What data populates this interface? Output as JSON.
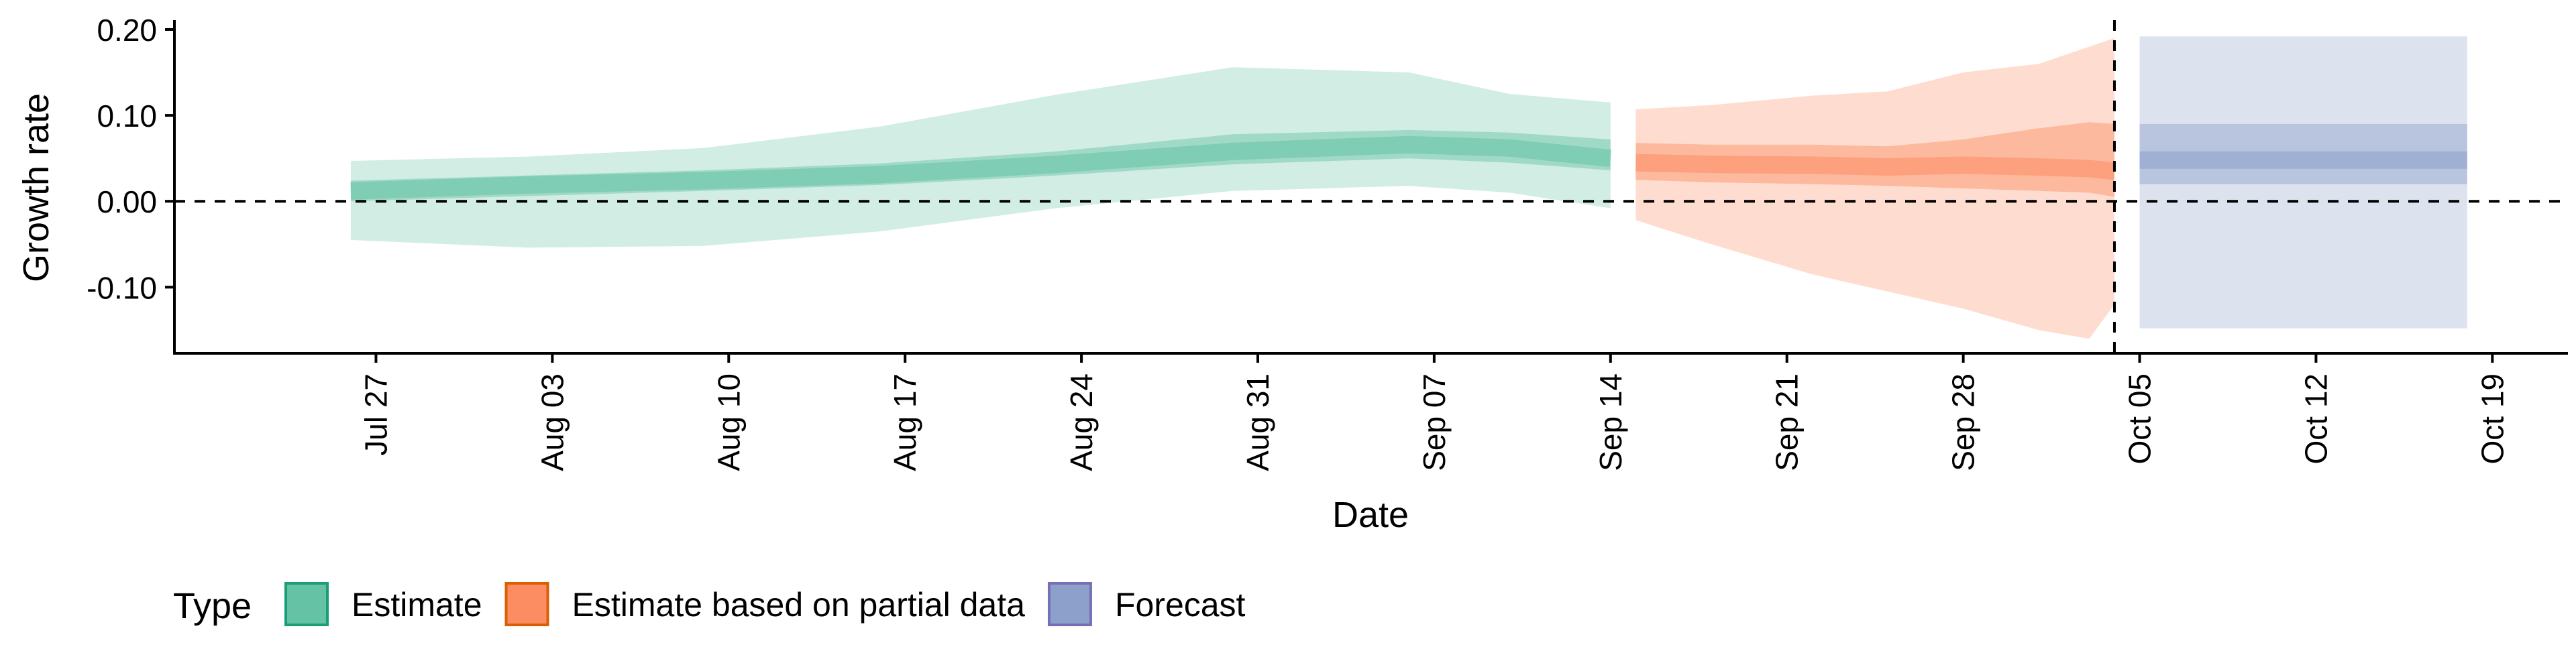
{
  "chart_data": {
    "type": "area",
    "xlabel": "Date",
    "ylabel": "Growth rate",
    "x_axis": {
      "ticks": [
        "2020-07-27",
        "2020-08-03",
        "2020-08-10",
        "2020-08-17",
        "2020-08-24",
        "2020-08-31",
        "2020-09-07",
        "2020-09-14",
        "2020-09-21",
        "2020-09-28",
        "2020-10-05",
        "2020-10-12",
        "2020-10-19"
      ],
      "tick_labels": [
        "Jul 27",
        "Aug 03",
        "Aug 10",
        "Aug 17",
        "Aug 24",
        "Aug 31",
        "Sep 07",
        "Sep 14",
        "Sep 21",
        "Sep 28",
        "Oct 05",
        "Oct 12",
        "Oct 19"
      ],
      "range": [
        "2020-07-19",
        "2020-10-22"
      ]
    },
    "y_axis": {
      "range": [
        -0.177,
        0.207
      ],
      "ticks": [
        -0.1,
        0.0,
        0.1,
        0.2
      ],
      "tick_labels": [
        "-0.10",
        "0.00",
        "0.10",
        "0.20"
      ]
    },
    "reference_lines": {
      "horizontal_y": 0.0,
      "vertical_x": "2020-10-04",
      "style": "dashed"
    },
    "grid": false,
    "legend": {
      "title": "Type",
      "position": "bottom-left",
      "entries": [
        "Estimate",
        "Estimate based on partial data",
        "Forecast"
      ]
    },
    "series": [
      {
        "name": "Estimate",
        "color": "#66c2a5",
        "border_color": "#1b9e77",
        "points": [
          {
            "x": "2020-07-26",
            "median": 0.012,
            "lo50": 0.0,
            "hi50": 0.024,
            "lo90": -0.045,
            "hi90": 0.047
          },
          {
            "x": "2020-08-02",
            "median": 0.019,
            "lo50": 0.006,
            "hi50": 0.03,
            "lo90": -0.054,
            "hi90": 0.052
          },
          {
            "x": "2020-08-09",
            "median": 0.024,
            "lo50": 0.012,
            "hi50": 0.036,
            "lo90": -0.052,
            "hi90": 0.062
          },
          {
            "x": "2020-08-16",
            "median": 0.031,
            "lo50": 0.019,
            "hi50": 0.044,
            "lo90": -0.035,
            "hi90": 0.087
          },
          {
            "x": "2020-08-23",
            "median": 0.043,
            "lo50": 0.03,
            "hi50": 0.058,
            "lo90": -0.008,
            "hi90": 0.124
          },
          {
            "x": "2020-08-30",
            "median": 0.058,
            "lo50": 0.043,
            "hi50": 0.078,
            "lo90": 0.012,
            "hi90": 0.156
          },
          {
            "x": "2020-09-06",
            "median": 0.066,
            "lo50": 0.05,
            "hi50": 0.083,
            "lo90": 0.018,
            "hi90": 0.15
          },
          {
            "x": "2020-09-10",
            "median": 0.062,
            "lo50": 0.045,
            "hi50": 0.08,
            "lo90": 0.01,
            "hi90": 0.125
          },
          {
            "x": "2020-09-14",
            "median": 0.05,
            "lo50": 0.036,
            "hi50": 0.072,
            "lo90": -0.008,
            "hi90": 0.115
          }
        ]
      },
      {
        "name": "Estimate based on partial data",
        "color": "#fc8d62",
        "border_color": "#d95f02",
        "points": [
          {
            "x": "2020-09-15",
            "median": 0.045,
            "lo50": 0.025,
            "hi50": 0.068,
            "lo90": -0.022,
            "hi90": 0.107
          },
          {
            "x": "2020-09-18",
            "median": 0.043,
            "lo50": 0.022,
            "hi50": 0.066,
            "lo90": -0.05,
            "hi90": 0.112
          },
          {
            "x": "2020-09-22",
            "median": 0.042,
            "lo50": 0.02,
            "hi50": 0.066,
            "lo90": -0.085,
            "hi90": 0.123
          },
          {
            "x": "2020-09-25",
            "median": 0.04,
            "lo50": 0.018,
            "hi50": 0.064,
            "lo90": -0.105,
            "hi90": 0.128
          },
          {
            "x": "2020-09-28",
            "median": 0.042,
            "lo50": 0.015,
            "hi50": 0.072,
            "lo90": -0.125,
            "hi90": 0.15
          },
          {
            "x": "2020-10-01",
            "median": 0.04,
            "lo50": 0.012,
            "hi50": 0.085,
            "lo90": -0.15,
            "hi90": 0.16
          },
          {
            "x": "2020-10-03",
            "median": 0.038,
            "lo50": 0.01,
            "hi50": 0.092,
            "lo90": -0.16,
            "hi90": 0.18
          },
          {
            "x": "2020-10-04",
            "median": 0.035,
            "lo50": 0.005,
            "hi50": 0.09,
            "lo90": -0.12,
            "hi90": 0.19
          }
        ]
      },
      {
        "name": "Forecast",
        "color": "#8da0cb",
        "border_color": "#7570b3",
        "points": [
          {
            "x": "2020-10-05",
            "median": 0.048,
            "lo50": 0.02,
            "hi50": 0.09,
            "lo90": -0.148,
            "hi90": 0.192
          },
          {
            "x": "2020-10-18",
            "median": 0.048,
            "lo50": 0.02,
            "hi50": 0.09,
            "lo90": -0.148,
            "hi90": 0.192
          }
        ]
      }
    ]
  }
}
